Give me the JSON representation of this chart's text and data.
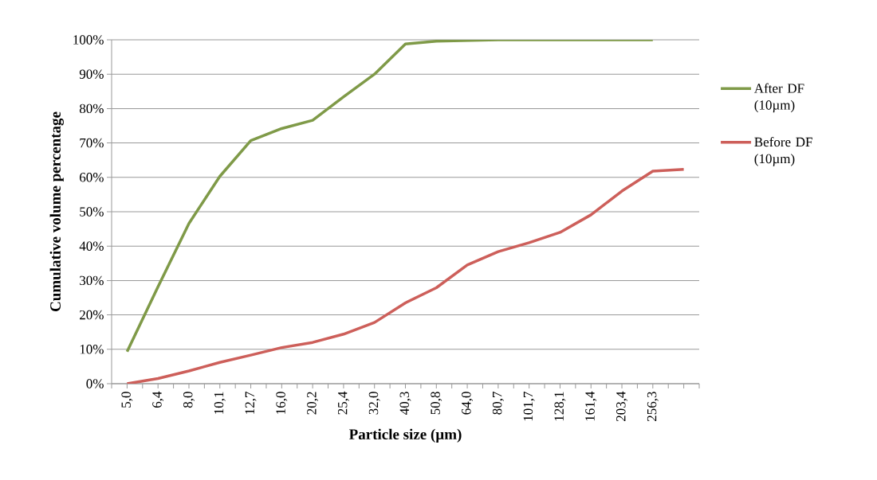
{
  "chart_data": {
    "type": "line",
    "xlabel": "Particle size (µm)",
    "ylabel": "Cumulative volume percentage",
    "categories": [
      "5,0",
      "6,4",
      "8,0",
      "10,1",
      "12,7",
      "16,0",
      "20,2",
      "25,4",
      "32,0",
      "40,3",
      "50,8",
      "64,0",
      "80,7",
      "101,7",
      "128,1",
      "161,4",
      "203,4",
      "256,3",
      null
    ],
    "series": [
      {
        "name": "After DF (10µm)",
        "color": "#7f9a48",
        "values": [
          9.3,
          28.2,
          46.6,
          60.3,
          70.7,
          74.2,
          76.6,
          83.4,
          90.0,
          98.8,
          99.6,
          99.8,
          100,
          100,
          100,
          100,
          100,
          100,
          null
        ]
      },
      {
        "name": "Before DF (10µm)",
        "color": "#cd5f5a",
        "values": [
          0,
          1.5,
          3.7,
          6.2,
          8.3,
          10.5,
          12.0,
          14.4,
          17.8,
          23.5,
          27.9,
          34.5,
          38.4,
          41.0,
          44.0,
          49.1,
          56.0,
          61.8,
          62.3
        ]
      }
    ],
    "ylim": [
      0,
      100
    ],
    "yticks": [
      {
        "value": 0,
        "label": "0%"
      },
      {
        "value": 10,
        "label": "10%"
      },
      {
        "value": 20,
        "label": "20%"
      },
      {
        "value": 30,
        "label": "30%"
      },
      {
        "value": 40,
        "label": "40%"
      },
      {
        "value": 50,
        "label": "50%"
      },
      {
        "value": 60,
        "label": "60%"
      },
      {
        "value": 70,
        "label": "70%"
      },
      {
        "value": 80,
        "label": "80%"
      },
      {
        "value": 90,
        "label": "90%"
      },
      {
        "value": 100,
        "label": "100%"
      }
    ],
    "grid": "y",
    "legend": "right",
    "marker": "none",
    "line_style": "solid"
  }
}
